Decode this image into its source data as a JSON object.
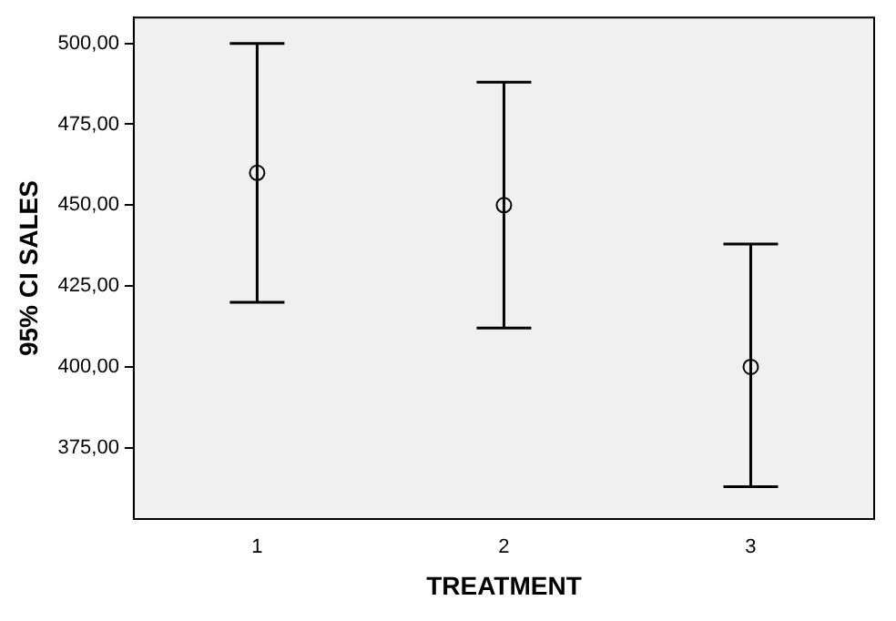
{
  "chart_data": {
    "type": "scatter",
    "xlabel": "TREATMENT",
    "ylabel": "95% CI SALES",
    "categories": [
      "1",
      "2",
      "3"
    ],
    "values": [
      460,
      450,
      400
    ],
    "errors": [
      [
        420,
        500
      ],
      [
        412,
        488
      ],
      [
        363,
        438
      ]
    ],
    "color": "#000000",
    "marker": "circle",
    "grid": false,
    "legend": false,
    "ylim": [
      353,
      508
    ],
    "yticks": [
      {
        "value": 375,
        "label": "375,00"
      },
      {
        "value": 400,
        "label": "400,00"
      },
      {
        "value": 425,
        "label": "425,00"
      },
      {
        "value": 450,
        "label": "450,00"
      },
      {
        "value": 475,
        "label": "475,00"
      },
      {
        "value": 500,
        "label": "500,00"
      }
    ]
  }
}
